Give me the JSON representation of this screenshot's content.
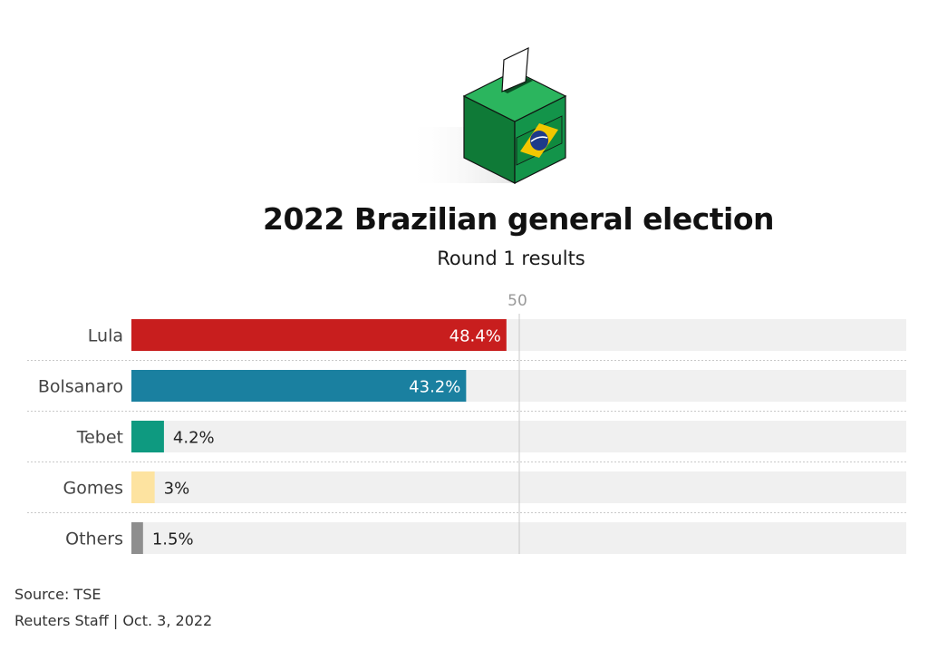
{
  "colors": {
    "track": "#f0f0f0",
    "reference_line": "#c8c8c8",
    "tick_label": "#999999",
    "label": "#444444",
    "value_inside": "#ffffff",
    "value_outside": "#222222"
  },
  "chart_data": {
    "type": "bar",
    "orientation": "horizontal",
    "title": "2022 Brazilian general election",
    "subtitle": "Round 1 results",
    "categories": [
      "Lula",
      "Bolsanaro",
      "Tebet",
      "Gomes",
      "Others"
    ],
    "values": [
      48.4,
      43.2,
      4.2,
      3,
      1.5
    ],
    "value_labels": [
      "48.4%",
      "43.2%",
      "4.2%",
      "3%",
      "1.5%"
    ],
    "bar_colors": [
      "#c81e1e",
      "#1a80a0",
      "#0e9a80",
      "#fde3a0",
      "#8e8e8e"
    ],
    "reference_line": {
      "value": 50,
      "label": "50"
    },
    "xlim": [
      0,
      100
    ],
    "grid": false,
    "legend": "none"
  },
  "footer": {
    "source": "Source: TSE",
    "credit": "Reuters Staff | Oct. 3, 2022"
  },
  "illustration": {
    "icon": "ballot-box-icon",
    "box_color": "#128a3e",
    "flag_color": "#f2c700",
    "globe_color": "#1e3a8a"
  }
}
